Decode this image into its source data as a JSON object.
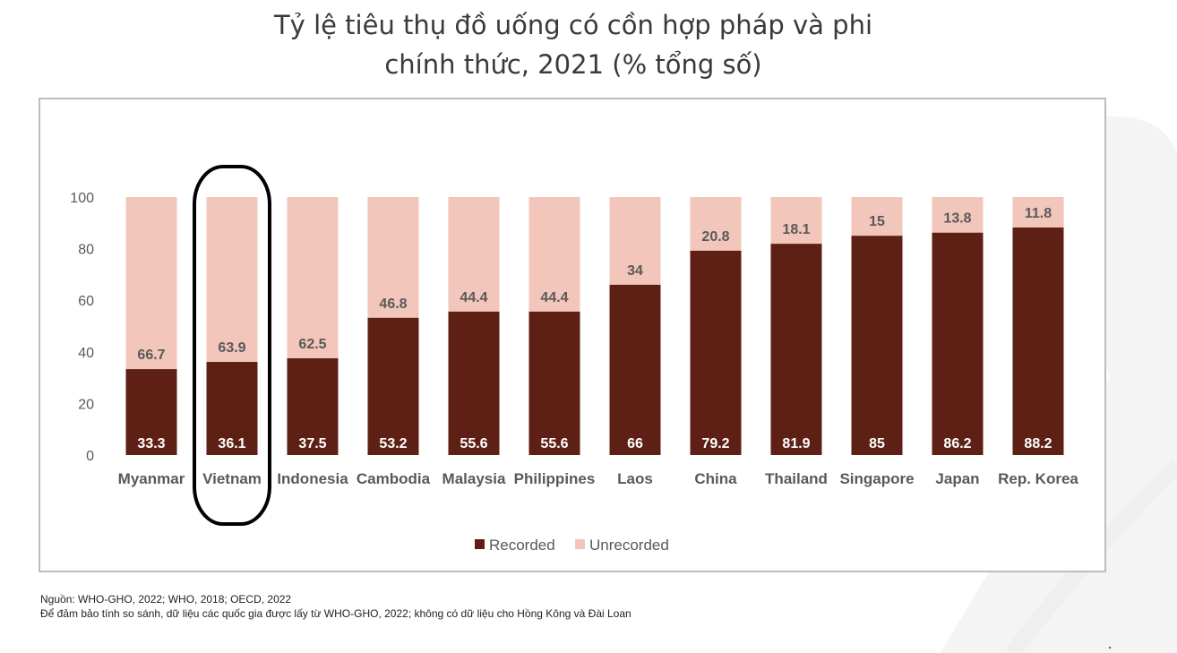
{
  "title_line1": "Tỷ lệ tiêu thụ đồ uống có cồn hợp pháp và phi",
  "title_line2": "chính thức, 2021 (% tổng số)",
  "notes": {
    "source": "Nguồn: WHO-GHO, 2022; WHO, 2018; OECD, 2022",
    "comment": "Để đảm bảo tính so sánh, dữ liệu các quốc gia được lấy từ WHO-GHO, 2022; không có dữ liệu cho Hồng Kông và Đài Loan"
  },
  "colors": {
    "recorded": "#5e2014",
    "unrecorded": "#f2c6ba",
    "recorded_label": "#ffffff",
    "unrecorded_label": "#595959",
    "axis_text": "#595959",
    "highlight": "#000000"
  },
  "chart_data": {
    "type": "bar",
    "stacked": true,
    "categories": [
      "Myanmar",
      "Vietnam",
      "Indonesia",
      "Cambodia",
      "Malaysia",
      "Philippines",
      "Laos",
      "China",
      "Thailand",
      "Singapore",
      "Japan",
      "Rep. Korea"
    ],
    "series": [
      {
        "name": "Recorded",
        "values": [
          33.3,
          36.1,
          37.5,
          53.2,
          55.6,
          55.6,
          66,
          79.2,
          81.9,
          85,
          86.2,
          88.2
        ]
      },
      {
        "name": "Unrecorded",
        "values": [
          66.7,
          63.9,
          62.5,
          46.8,
          44.4,
          44.4,
          34,
          20.8,
          18.1,
          15,
          13.8,
          11.8
        ]
      }
    ],
    "data_labels": {
      "Recorded": [
        "33.3",
        "36.1",
        "37.5",
        "53.2",
        "55.6",
        "55.6",
        "66",
        "79.2",
        "81.9",
        "85",
        "86.2",
        "88.2"
      ],
      "Unrecorded": [
        "66.7",
        "63.9",
        "62.5",
        "46.8",
        "44.4",
        "44.4",
        "34",
        "20.8",
        "18.1",
        "15",
        "13.8",
        "11.8"
      ]
    },
    "y_ticks": [
      "0",
      "20",
      "40",
      "60",
      "80",
      "100"
    ],
    "ylim": [
      0,
      100
    ],
    "grid": false,
    "legend": "bottom-center",
    "highlighted_category": "Vietnam"
  }
}
